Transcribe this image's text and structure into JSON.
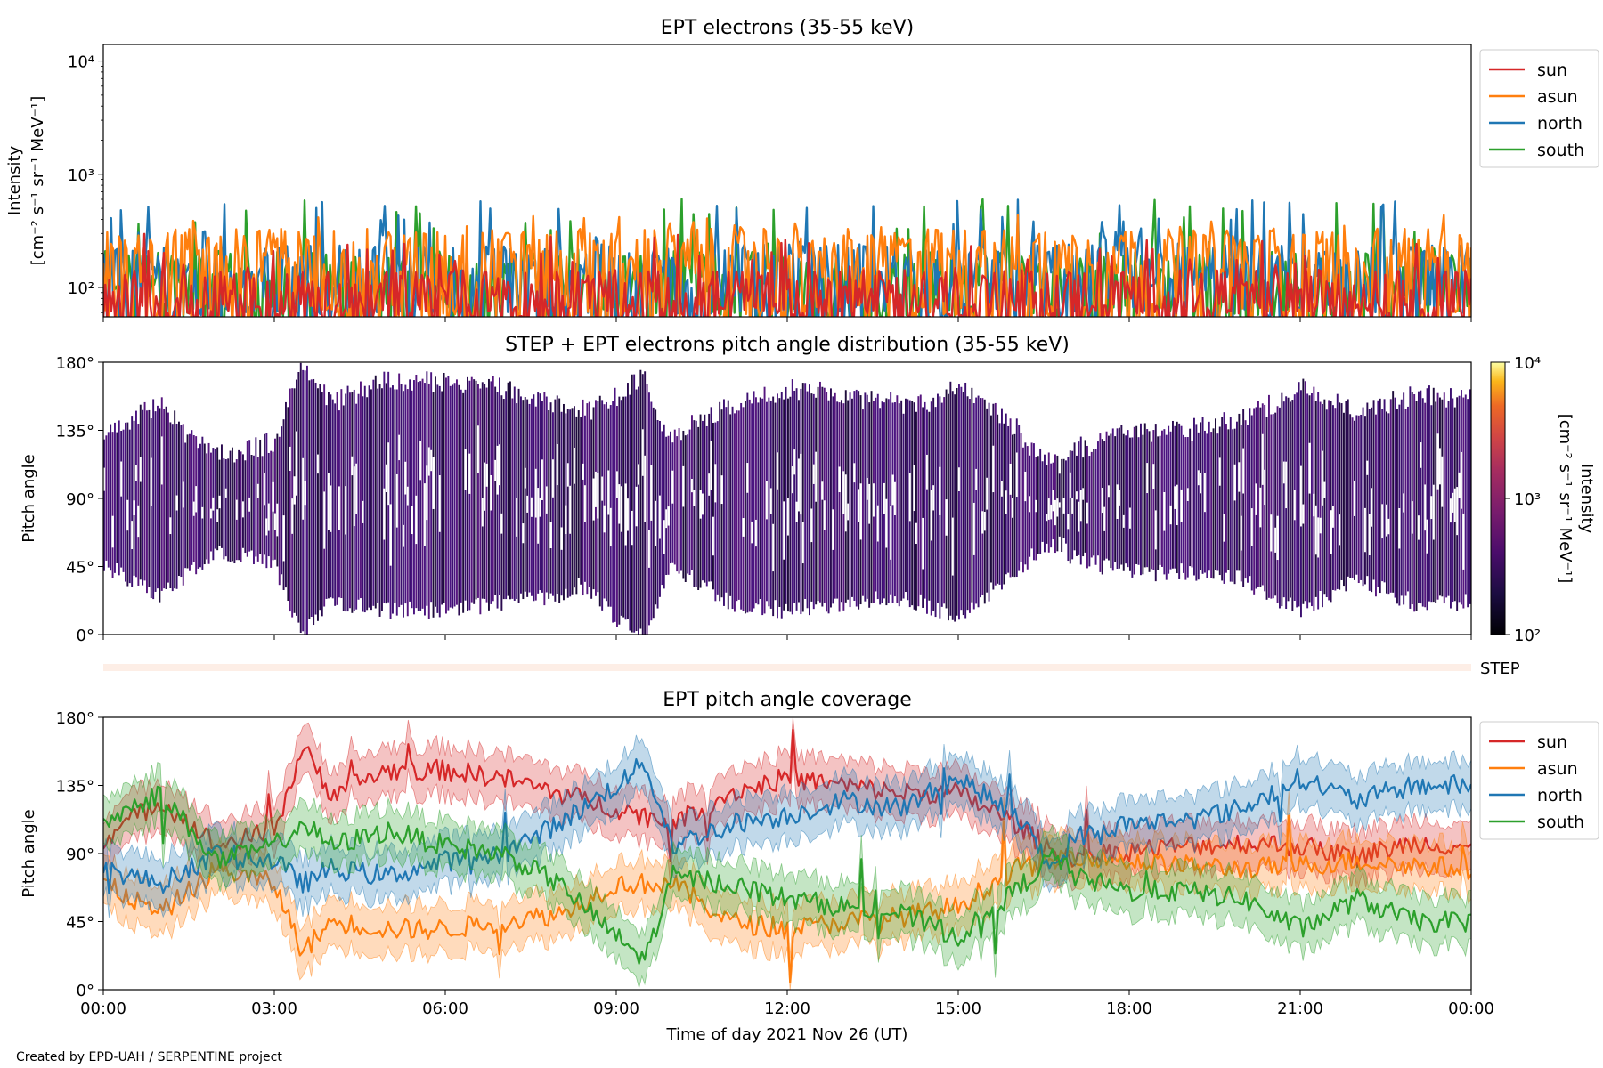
{
  "footer": {
    "credit": "Created by EPD-UAH / SERPENTINE project"
  },
  "colors": {
    "sun": "#d62728",
    "asun": "#ff7f0e",
    "north": "#1f77b4",
    "south": "#2ca02c",
    "pad_fill": "#3b0f70",
    "step_band": "#fdeee6"
  },
  "chart_data": [
    {
      "type": "line",
      "title": "EPT electrons (35-55 keV)",
      "ylabel_line1": "Intensity",
      "ylabel_line2": "[cm⁻² s⁻¹ sr⁻¹ MeV⁻¹]",
      "yscale": "log",
      "ylim": [
        55,
        14000
      ],
      "y_ticks": [
        {
          "value": 100,
          "label": "10²"
        },
        {
          "value": 1000,
          "label": "10³"
        },
        {
          "value": 10000,
          "label": "10⁴"
        }
      ],
      "xlim": [
        "00:00",
        "24:00"
      ],
      "legend_position": "outside-right",
      "series": [
        {
          "name": "sun",
          "color": "#d62728",
          "typical": 95,
          "peak": 300
        },
        {
          "name": "asun",
          "color": "#ff7f0e",
          "typical": 220,
          "peak": 450
        },
        {
          "name": "north",
          "color": "#1f77b4",
          "typical": 160,
          "peak": 600
        },
        {
          "name": "south",
          "color": "#2ca02c",
          "typical": 140,
          "peak": 620
        }
      ]
    },
    {
      "type": "heatmap",
      "title": "STEP + EPT electrons pitch angle distribution (35-55 keV)",
      "ylabel": "Pitch angle",
      "ylim": [
        0,
        180
      ],
      "y_ticks": [
        {
          "value": 0,
          "label": "0°"
        },
        {
          "value": 45,
          "label": "45°"
        },
        {
          "value": 90,
          "label": "90°"
        },
        {
          "value": 135,
          "label": "135°"
        },
        {
          "value": 180,
          "label": "180°"
        }
      ],
      "colorbar": {
        "label_line1": "Intensity",
        "label_line2": "[cm⁻² s⁻¹ sr⁻¹ MeV⁻¹]",
        "scale": "log",
        "range": [
          100,
          10000
        ],
        "tick_labels": [
          "10²",
          "10³",
          "10⁴"
        ]
      },
      "step_label": "STEP"
    },
    {
      "type": "line",
      "title": "EPT pitch angle coverage",
      "ylabel": "Pitch angle",
      "xlabel": "Time of day 2021 Nov 26 (UT)",
      "ylim": [
        0,
        180
      ],
      "y_ticks": [
        {
          "value": 0,
          "label": "0°"
        },
        {
          "value": 45,
          "label": "45°"
        },
        {
          "value": 90,
          "label": "90°"
        },
        {
          "value": 135,
          "label": "135°"
        },
        {
          "value": 180,
          "label": "180°"
        }
      ],
      "x_tick_labels": [
        "00:00",
        "03:00",
        "06:00",
        "09:00",
        "12:00",
        "15:00",
        "18:00",
        "21:00",
        "00:00"
      ],
      "legend_position": "outside-right",
      "series": [
        {
          "name": "sun",
          "color": "#d62728",
          "hours": [
            0,
            1,
            2,
            3,
            3.5,
            4,
            5,
            6,
            7,
            8,
            9,
            10,
            11,
            12,
            13,
            14,
            15,
            16,
            16.7,
            17,
            18,
            19,
            20,
            21,
            22,
            23,
            24
          ],
          "values": [
            100,
            125,
            95,
            105,
            160,
            130,
            145,
            145,
            140,
            130,
            120,
            110,
            130,
            140,
            135,
            130,
            130,
            110,
            90,
            88,
            92,
            95,
            97,
            95,
            88,
            97,
            95
          ]
        },
        {
          "name": "asun",
          "color": "#ff7f0e",
          "hours": [
            0,
            1,
            2,
            3,
            3.5,
            4,
            5,
            6,
            7,
            8,
            9,
            10,
            11,
            12,
            13,
            14,
            15,
            16,
            16.7,
            17,
            18,
            19,
            20,
            21,
            22,
            23,
            24
          ],
          "values": [
            70,
            50,
            80,
            70,
            25,
            45,
            40,
            40,
            45,
            50,
            70,
            70,
            45,
            40,
            45,
            48,
            55,
            80,
            85,
            90,
            85,
            82,
            80,
            82,
            85,
            82,
            80
          ]
        },
        {
          "name": "north",
          "color": "#1f77b4",
          "hours": [
            0,
            1,
            2,
            3,
            3.5,
            4,
            5,
            6,
            7,
            8,
            9,
            9.5,
            10,
            11,
            12,
            13,
            14,
            15,
            16,
            16.7,
            17,
            18,
            19,
            20,
            21,
            22,
            23,
            24
          ],
          "values": [
            80,
            70,
            90,
            85,
            70,
            80,
            75,
            85,
            90,
            110,
            135,
            150,
            95,
            110,
            115,
            125,
            120,
            140,
            115,
            80,
            100,
            110,
            112,
            120,
            140,
            125,
            135,
            135
          ]
        },
        {
          "name": "south",
          "color": "#2ca02c",
          "hours": [
            0,
            1,
            2,
            3,
            3.5,
            4,
            5,
            6,
            7,
            8,
            9,
            9.5,
            10,
            11,
            12,
            13,
            14,
            15,
            16,
            16.7,
            17,
            18,
            19,
            20,
            21,
            22,
            23,
            24
          ],
          "values": [
            110,
            130,
            85,
            95,
            110,
            95,
            105,
            95,
            90,
            70,
            35,
            20,
            75,
            70,
            60,
            55,
            50,
            35,
            65,
            90,
            75,
            65,
            65,
            60,
            40,
            60,
            45,
            45
          ]
        }
      ]
    }
  ]
}
